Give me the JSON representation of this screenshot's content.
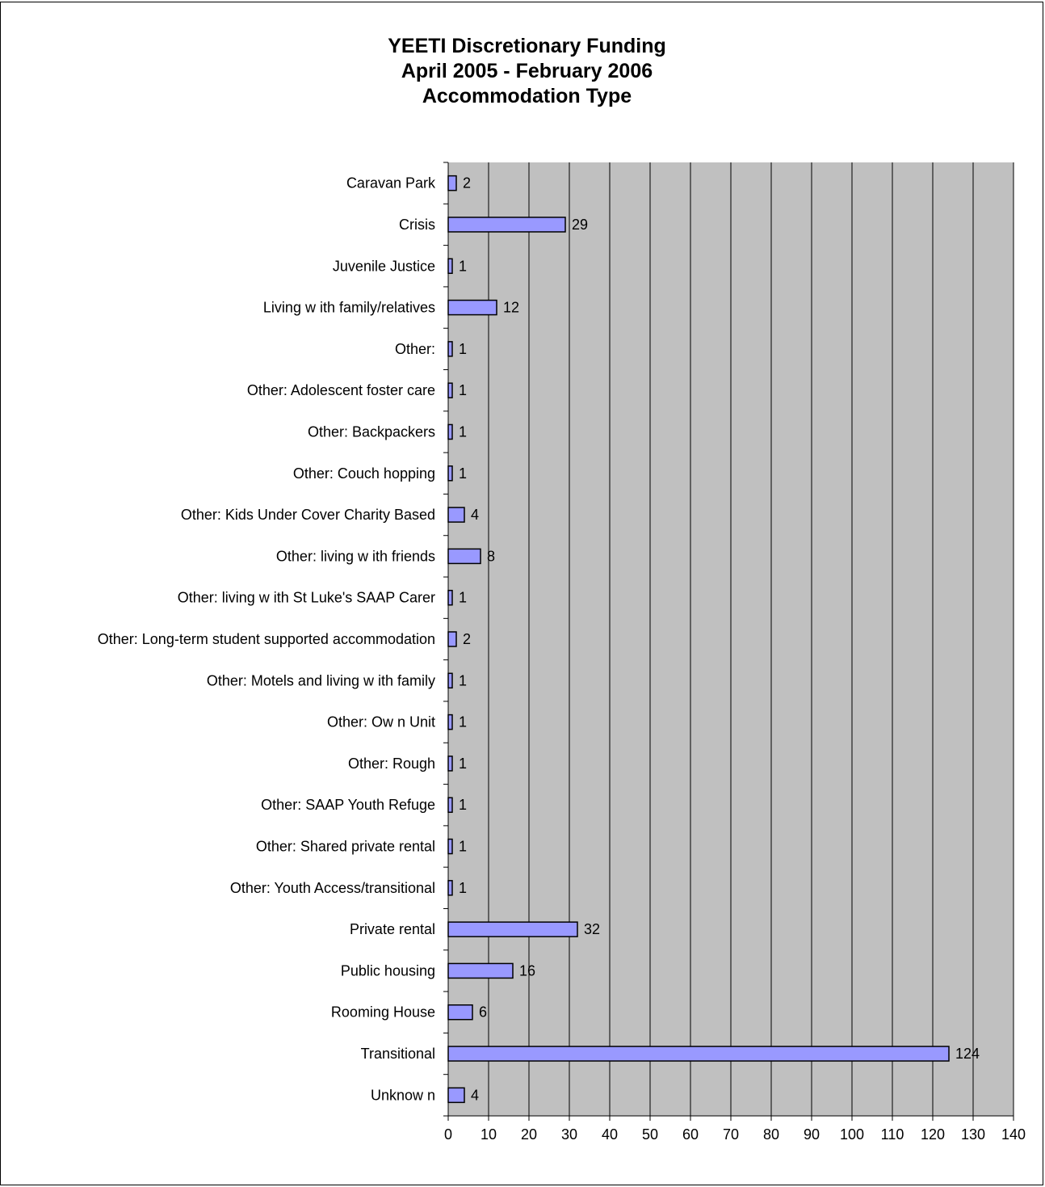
{
  "chart_data": {
    "type": "bar",
    "orientation": "horizontal",
    "title_lines": [
      "YEETI Discretionary Funding",
      "April 2005 - February 2006",
      "Accommodation Type"
    ],
    "categories": [
      "Caravan Park",
      "Crisis",
      "Juvenile Justice",
      "Living w ith family/relatives",
      "Other:",
      "Other:  Adolescent foster care",
      "Other:  Backpackers",
      "Other:  Couch hopping",
      "Other:  Kids Under Cover Charity Based",
      "Other:  living w ith friends",
      "Other:  living w ith St Luke's SAAP Carer",
      "Other:  Long-term student supported accommodation",
      "Other:  Motels and living w ith family",
      "Other:  Ow n Unit",
      "Other:  Rough",
      "Other:  SAAP Youth Refuge",
      "Other:  Shared private rental",
      "Other:  Youth Access/transitional",
      "Private rental",
      "Public housing",
      "Rooming House",
      "Transitional",
      "Unknow n"
    ],
    "values": [
      2,
      29,
      1,
      12,
      1,
      1,
      1,
      1,
      4,
      8,
      1,
      2,
      1,
      1,
      1,
      1,
      1,
      1,
      32,
      16,
      6,
      124,
      4
    ],
    "xlim": [
      0,
      140
    ],
    "xticks": [
      0,
      10,
      20,
      30,
      40,
      50,
      60,
      70,
      80,
      90,
      100,
      110,
      120,
      130,
      140
    ],
    "grid": true,
    "legend": "none",
    "colors": {
      "bar_fill": "#9999ff",
      "bar_stroke": "#000000",
      "plot_background": "#c0c0c0",
      "grid": "#000000"
    }
  }
}
